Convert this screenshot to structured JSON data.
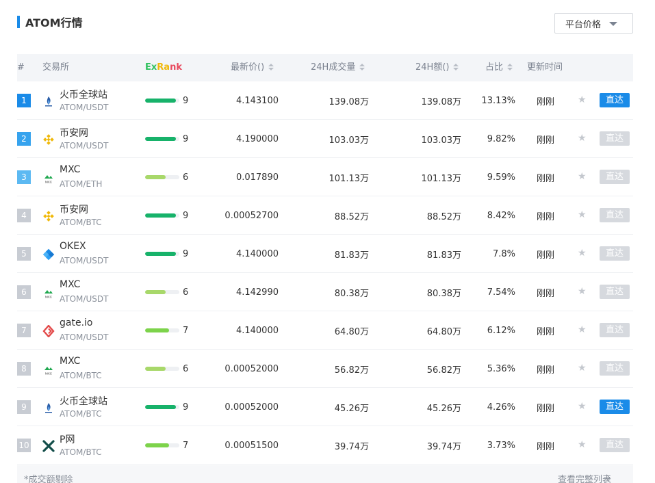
{
  "header": {
    "title": "ATOM行情",
    "accent": "#1a8be8"
  },
  "price_select": {
    "label": "平台价格"
  },
  "columns": {
    "index": "#",
    "exchange": "交易所",
    "exrank": [
      "Ex",
      "Ra",
      "nk"
    ],
    "price": "最新价()",
    "volume": "24H成交量",
    "amount": "24H额()",
    "share": "占比",
    "updated": "更新时间"
  },
  "colors": {
    "rank_top": "#1a8be8",
    "rank_2": "#36a3ee",
    "rank_3": "#5cb9f2",
    "rank_other": "#c8ccd3",
    "score_high": "#17b26a",
    "score_mid": "#7dd34b",
    "score_low": "#a8d86a",
    "go_active": "#1a8be8",
    "go_inactive": "#d6d9de"
  },
  "rows": [
    {
      "rank": "1",
      "exchange": "火币全球站",
      "pair": "ATOM/USDT",
      "logo": "huobi-icon",
      "score": "9",
      "score_fraction": 0.9,
      "price": "4.143100",
      "volume": "139.08万",
      "amount": "139.08万",
      "share": "13.13%",
      "updated": "刚刚",
      "go": "直达",
      "go_active": true
    },
    {
      "rank": "2",
      "exchange": "币安网",
      "pair": "ATOM/USDT",
      "logo": "binance-icon",
      "score": "9",
      "score_fraction": 0.9,
      "price": "4.190000",
      "volume": "103.03万",
      "amount": "103.03万",
      "share": "9.82%",
      "updated": "刚刚",
      "go": "直达",
      "go_active": false
    },
    {
      "rank": "3",
      "exchange": "MXC",
      "pair": "ATOM/ETH",
      "logo": "mxc-icon",
      "score": "6",
      "score_fraction": 0.6,
      "price": "0.017890",
      "volume": "101.13万",
      "amount": "101.13万",
      "share": "9.59%",
      "updated": "刚刚",
      "go": "直达",
      "go_active": false
    },
    {
      "rank": "4",
      "exchange": "币安网",
      "pair": "ATOM/BTC",
      "logo": "binance-icon",
      "score": "9",
      "score_fraction": 0.9,
      "price": "0.00052700",
      "volume": "88.52万",
      "amount": "88.52万",
      "share": "8.42%",
      "updated": "刚刚",
      "go": "直达",
      "go_active": false
    },
    {
      "rank": "5",
      "exchange": "OKEX",
      "pair": "ATOM/USDT",
      "logo": "okex-icon",
      "score": "9",
      "score_fraction": 0.9,
      "price": "4.140000",
      "volume": "81.83万",
      "amount": "81.83万",
      "share": "7.8%",
      "updated": "刚刚",
      "go": "直达",
      "go_active": false
    },
    {
      "rank": "6",
      "exchange": "MXC",
      "pair": "ATOM/USDT",
      "logo": "mxc-icon",
      "score": "6",
      "score_fraction": 0.6,
      "price": "4.142990",
      "volume": "80.38万",
      "amount": "80.38万",
      "share": "7.54%",
      "updated": "刚刚",
      "go": "直达",
      "go_active": false
    },
    {
      "rank": "7",
      "exchange": "gate.io",
      "pair": "ATOM/USDT",
      "logo": "gateio-icon",
      "score": "7",
      "score_fraction": 0.7,
      "price": "4.140000",
      "volume": "64.80万",
      "amount": "64.80万",
      "share": "6.12%",
      "updated": "刚刚",
      "go": "直达",
      "go_active": false
    },
    {
      "rank": "8",
      "exchange": "MXC",
      "pair": "ATOM/BTC",
      "logo": "mxc-icon",
      "score": "6",
      "score_fraction": 0.6,
      "price": "0.00052000",
      "volume": "56.82万",
      "amount": "56.82万",
      "share": "5.36%",
      "updated": "刚刚",
      "go": "直达",
      "go_active": false
    },
    {
      "rank": "9",
      "exchange": "火币全球站",
      "pair": "ATOM/BTC",
      "logo": "huobi-icon",
      "score": "9",
      "score_fraction": 0.9,
      "price": "0.00052000",
      "volume": "45.26万",
      "amount": "45.26万",
      "share": "4.26%",
      "updated": "刚刚",
      "go": "直达",
      "go_active": true
    },
    {
      "rank": "10",
      "exchange": "P网",
      "pair": "ATOM/BTC",
      "logo": "poloniex-icon",
      "score": "7",
      "score_fraction": 0.7,
      "price": "0.00051500",
      "volume": "39.74万",
      "amount": "39.74万",
      "share": "3.73%",
      "updated": "刚刚",
      "go": "直达",
      "go_active": false
    }
  ],
  "footer": {
    "note": "*成交额剔除",
    "more": "查看完整列表"
  }
}
